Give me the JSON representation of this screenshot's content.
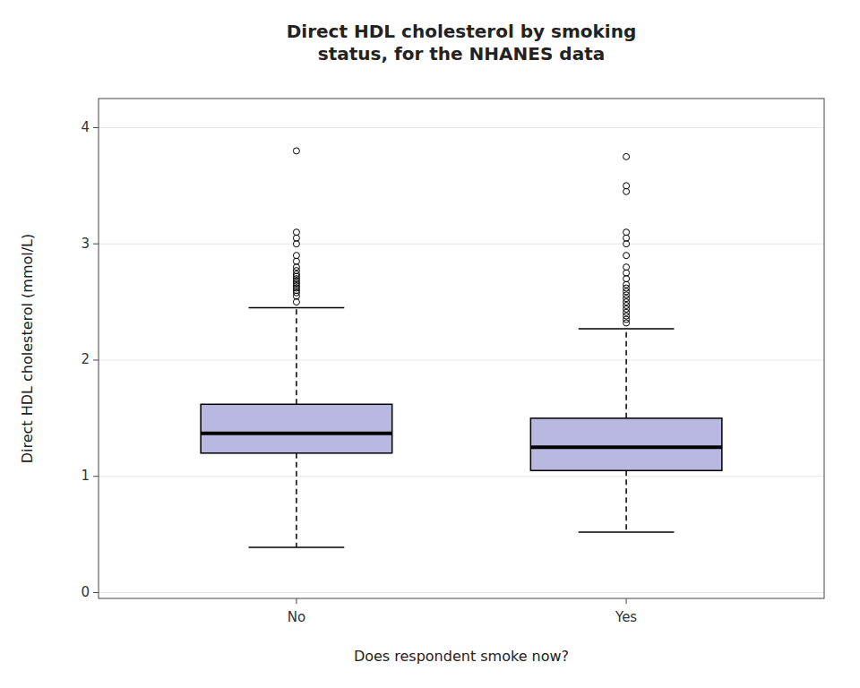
{
  "chart_data": {
    "type": "box",
    "title": "Direct HDL cholesterol by smoking\nstatus, for the NHANES data",
    "x_label": "Does respondent smoke now?",
    "y_label": "Direct HDL cholesterol (mmol/L)",
    "categories": [
      "No",
      "Yes"
    ],
    "color": "#b8b8e0",
    "ylim": [
      -0.05,
      4.25
    ],
    "yticks": [
      0,
      1,
      2,
      3,
      4
    ],
    "boxes": [
      {
        "q1": 1.2,
        "median": 1.37,
        "q3": 1.62,
        "whisker_low": 0.39,
        "whisker_high": 2.45,
        "outliers": [
          2.5,
          2.55,
          2.58,
          2.6,
          2.62,
          2.64,
          2.66,
          2.68,
          2.7,
          2.72,
          2.74,
          2.77,
          2.8,
          2.85,
          2.9,
          3.0,
          3.05,
          3.1,
          3.8
        ]
      },
      {
        "q1": 1.05,
        "median": 1.25,
        "q3": 1.5,
        "whisker_low": 0.52,
        "whisker_high": 2.27,
        "outliers": [
          2.32,
          2.35,
          2.38,
          2.41,
          2.44,
          2.47,
          2.5,
          2.53,
          2.56,
          2.59,
          2.62,
          2.65,
          2.7,
          2.75,
          2.8,
          2.9,
          3.0,
          3.05,
          3.1,
          3.45,
          3.5,
          3.75
        ]
      }
    ]
  }
}
